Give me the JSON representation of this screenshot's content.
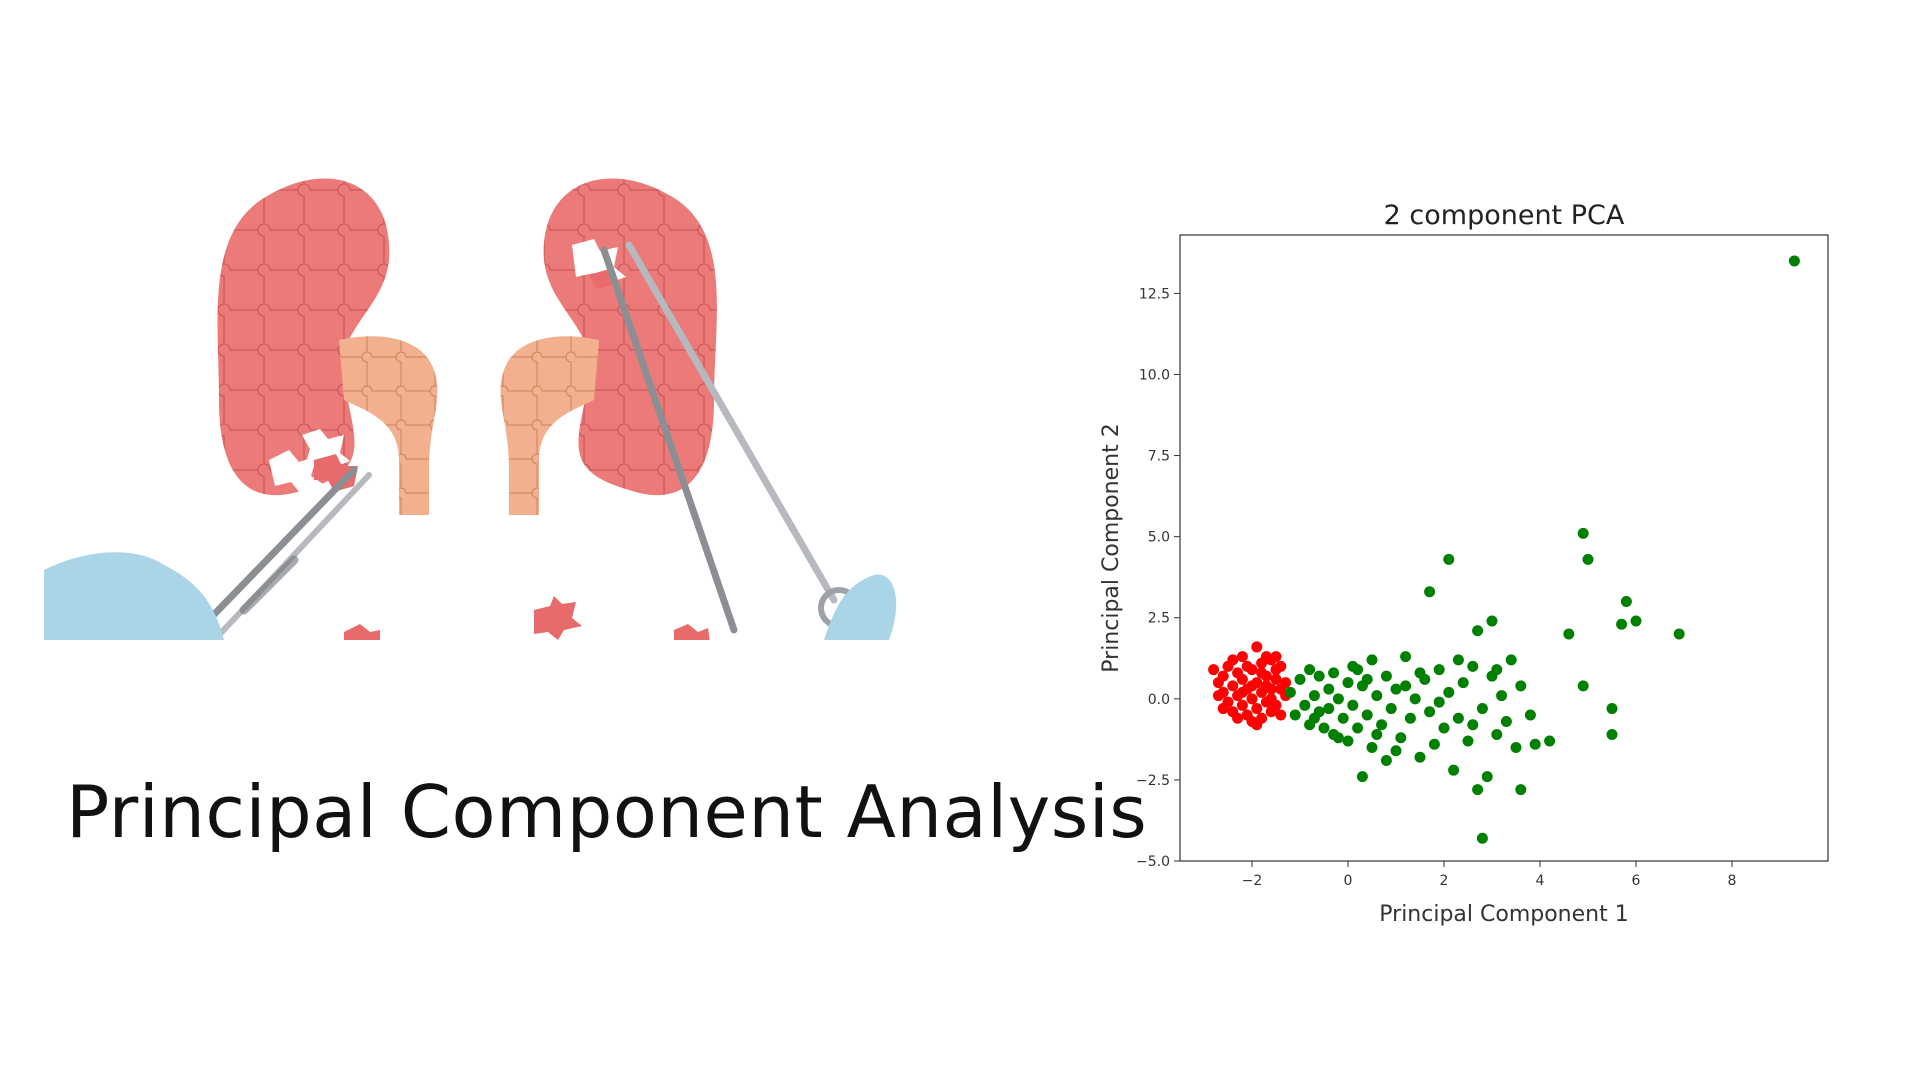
{
  "slide": {
    "title": "Principal Component Analysis",
    "illustration": "kidney-puzzle-surgery"
  },
  "chart_data": {
    "type": "scatter",
    "title": "2 component PCA",
    "xlabel": "Principal Component 1",
    "ylabel": "Principal Component 2",
    "xlim": [
      -3.5,
      10
    ],
    "ylim": [
      -5.0,
      14.3
    ],
    "xticks": [
      "−2",
      "0",
      "2",
      "4",
      "6",
      "8"
    ],
    "yticks": [
      "−5.0",
      "−2.5",
      "0.0",
      "2.5",
      "5.0",
      "7.5",
      "10.0",
      "12.5"
    ],
    "grid": false,
    "series": [
      {
        "color": "#ff0000",
        "points": [
          [
            -2.8,
            0.9
          ],
          [
            -2.7,
            0.5
          ],
          [
            -2.6,
            0.2
          ],
          [
            -2.6,
            0.7
          ],
          [
            -2.5,
            -0.1
          ],
          [
            -2.5,
            1.0
          ],
          [
            -2.4,
            0.4
          ],
          [
            -2.4,
            -0.4
          ],
          [
            -2.3,
            0.8
          ],
          [
            -2.3,
            0.1
          ],
          [
            -2.2,
            -0.2
          ],
          [
            -2.2,
            0.6
          ],
          [
            -2.2,
            1.3
          ],
          [
            -2.1,
            0.3
          ],
          [
            -2.1,
            -0.5
          ],
          [
            -2.0,
            0.9
          ],
          [
            -2.0,
            0.0
          ],
          [
            -2.0,
            -0.7
          ],
          [
            -1.9,
            0.5
          ],
          [
            -1.9,
            1.6
          ],
          [
            -1.9,
            -0.3
          ],
          [
            -1.8,
            0.2
          ],
          [
            -1.8,
            1.1
          ],
          [
            -1.8,
            -0.6
          ],
          [
            -1.7,
            0.7
          ],
          [
            -1.7,
            -0.1
          ],
          [
            -1.7,
            0.4
          ],
          [
            -1.6,
            1.2
          ],
          [
            -1.6,
            -0.4
          ],
          [
            -1.6,
            0.0
          ],
          [
            -1.5,
            0.6
          ],
          [
            -1.5,
            -0.2
          ],
          [
            -1.5,
            0.9
          ],
          [
            -1.4,
            0.3
          ],
          [
            -1.4,
            -0.5
          ],
          [
            -1.4,
            1.0
          ],
          [
            -1.3,
            0.1
          ],
          [
            -1.3,
            0.5
          ],
          [
            -2.4,
            1.2
          ],
          [
            -2.6,
            -0.3
          ],
          [
            -2.0,
            0.4
          ],
          [
            -2.1,
            1.0
          ],
          [
            -1.7,
            1.3
          ],
          [
            -2.3,
            -0.6
          ],
          [
            -1.9,
            -0.8
          ],
          [
            -1.5,
            1.3
          ],
          [
            -2.7,
            0.1
          ],
          [
            -2.2,
            0.2
          ],
          [
            -1.8,
            0.8
          ],
          [
            -1.6,
            0.3
          ]
        ]
      },
      {
        "color": "#008000",
        "points": [
          [
            -1.2,
            0.2
          ],
          [
            -1.1,
            -0.5
          ],
          [
            -1.0,
            0.6
          ],
          [
            -0.9,
            -0.2
          ],
          [
            -0.8,
            0.9
          ],
          [
            -0.8,
            -0.8
          ],
          [
            -0.7,
            0.1
          ],
          [
            -0.6,
            -0.4
          ],
          [
            -0.6,
            0.7
          ],
          [
            -0.5,
            -0.9
          ],
          [
            -0.4,
            0.3
          ],
          [
            -0.4,
            -0.3
          ],
          [
            -0.3,
            0.8
          ],
          [
            -0.3,
            -1.1
          ],
          [
            -0.2,
            0.0
          ],
          [
            -0.1,
            -0.6
          ],
          [
            0.0,
            0.5
          ],
          [
            0.0,
            -1.3
          ],
          [
            0.1,
            1.0
          ],
          [
            0.1,
            -0.2
          ],
          [
            0.2,
            -0.9
          ],
          [
            0.3,
            0.4
          ],
          [
            0.3,
            -2.4
          ],
          [
            0.4,
            -0.5
          ],
          [
            0.5,
            1.2
          ],
          [
            0.5,
            -1.5
          ],
          [
            0.6,
            0.1
          ],
          [
            0.7,
            -0.8
          ],
          [
            0.8,
            0.7
          ],
          [
            0.8,
            -1.9
          ],
          [
            0.9,
            -0.3
          ],
          [
            1.0,
            0.3
          ],
          [
            1.1,
            -1.2
          ],
          [
            1.2,
            1.3
          ],
          [
            1.3,
            -0.6
          ],
          [
            1.4,
            0.0
          ],
          [
            1.5,
            -1.8
          ],
          [
            1.6,
            0.6
          ],
          [
            1.7,
            -0.4
          ],
          [
            1.7,
            3.3
          ],
          [
            1.8,
            -1.4
          ],
          [
            1.9,
            0.9
          ],
          [
            2.0,
            -0.9
          ],
          [
            2.1,
            4.3
          ],
          [
            2.1,
            0.2
          ],
          [
            2.2,
            -2.2
          ],
          [
            2.3,
            -0.6
          ],
          [
            2.4,
            0.5
          ],
          [
            2.5,
            -1.3
          ],
          [
            2.6,
            1.0
          ],
          [
            2.7,
            -2.8
          ],
          [
            2.7,
            2.1
          ],
          [
            2.8,
            -0.3
          ],
          [
            2.8,
            -4.3
          ],
          [
            2.9,
            -2.4
          ],
          [
            3.0,
            2.4
          ],
          [
            3.0,
            0.7
          ],
          [
            3.1,
            -1.1
          ],
          [
            3.2,
            0.1
          ],
          [
            3.3,
            -0.7
          ],
          [
            3.4,
            1.2
          ],
          [
            3.5,
            -1.5
          ],
          [
            3.6,
            0.4
          ],
          [
            3.6,
            -2.8
          ],
          [
            3.8,
            -0.5
          ],
          [
            3.9,
            -1.4
          ],
          [
            4.2,
            -1.3
          ],
          [
            4.6,
            2.0
          ],
          [
            4.9,
            5.1
          ],
          [
            4.9,
            0.4
          ],
          [
            5.0,
            4.3
          ],
          [
            5.5,
            -0.3
          ],
          [
            5.5,
            -1.1
          ],
          [
            5.7,
            2.3
          ],
          [
            5.8,
            3.0
          ],
          [
            6.0,
            2.4
          ],
          [
            6.9,
            2.0
          ],
          [
            9.3,
            13.5
          ],
          [
            -0.7,
            -0.6
          ],
          [
            0.2,
            0.9
          ],
          [
            1.0,
            -1.6
          ],
          [
            1.5,
            0.8
          ],
          [
            2.3,
            1.2
          ],
          [
            0.6,
            -1.1
          ],
          [
            1.9,
            -0.1
          ],
          [
            -0.2,
            -1.2
          ],
          [
            1.2,
            0.4
          ],
          [
            0.4,
            0.6
          ],
          [
            2.6,
            -0.8
          ],
          [
            3.1,
            0.9
          ]
        ]
      }
    ]
  }
}
